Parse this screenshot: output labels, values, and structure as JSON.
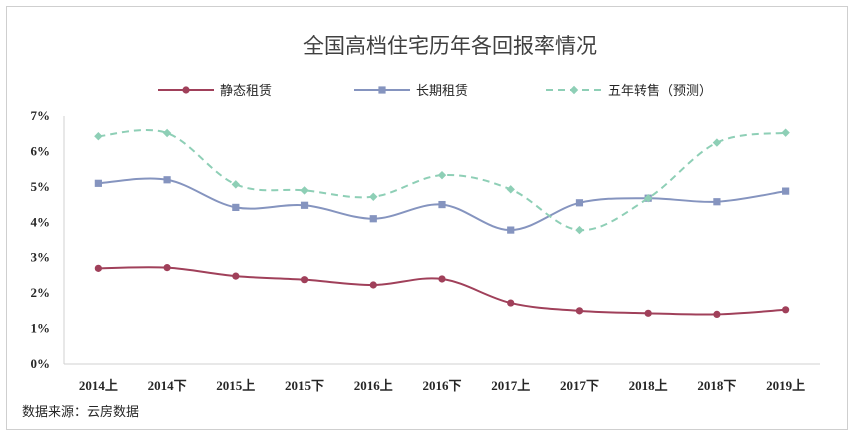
{
  "chart_data": {
    "type": "line",
    "title": "全国高档住宅历年各回报率情况",
    "categories": [
      "2014上",
      "2014下",
      "2015上",
      "2015下",
      "2016上",
      "2016下",
      "2017上",
      "2017下",
      "2018上",
      "2018下",
      "2019上"
    ],
    "y_ticks": [
      "7%",
      "6%",
      "5%",
      "4%",
      "3%",
      "2%",
      "1%",
      "0%"
    ],
    "ylim": [
      0,
      7
    ],
    "y_unit": "%",
    "grid": false,
    "legend_position": "top",
    "series": [
      {
        "name": "静态租赁",
        "values": [
          2.7,
          2.72,
          2.48,
          2.38,
          2.23,
          2.4,
          1.72,
          1.5,
          1.43,
          1.4,
          1.53
        ],
        "color": "#a0405a",
        "style": "solid",
        "marker": "circle"
      },
      {
        "name": "长期租赁",
        "values": [
          5.1,
          5.2,
          4.42,
          4.48,
          4.1,
          4.5,
          3.78,
          4.55,
          4.68,
          4.58,
          4.88
        ],
        "color": "#8594bf",
        "style": "solid",
        "marker": "square"
      },
      {
        "name": "五年转售（预测）",
        "values": [
          6.43,
          6.52,
          5.07,
          4.9,
          4.72,
          5.33,
          4.93,
          3.78,
          4.68,
          6.25,
          6.53
        ],
        "color": "#8ecfb6",
        "style": "dashed",
        "marker": "diamond"
      }
    ]
  },
  "source_text": "数据来源：云房数据"
}
